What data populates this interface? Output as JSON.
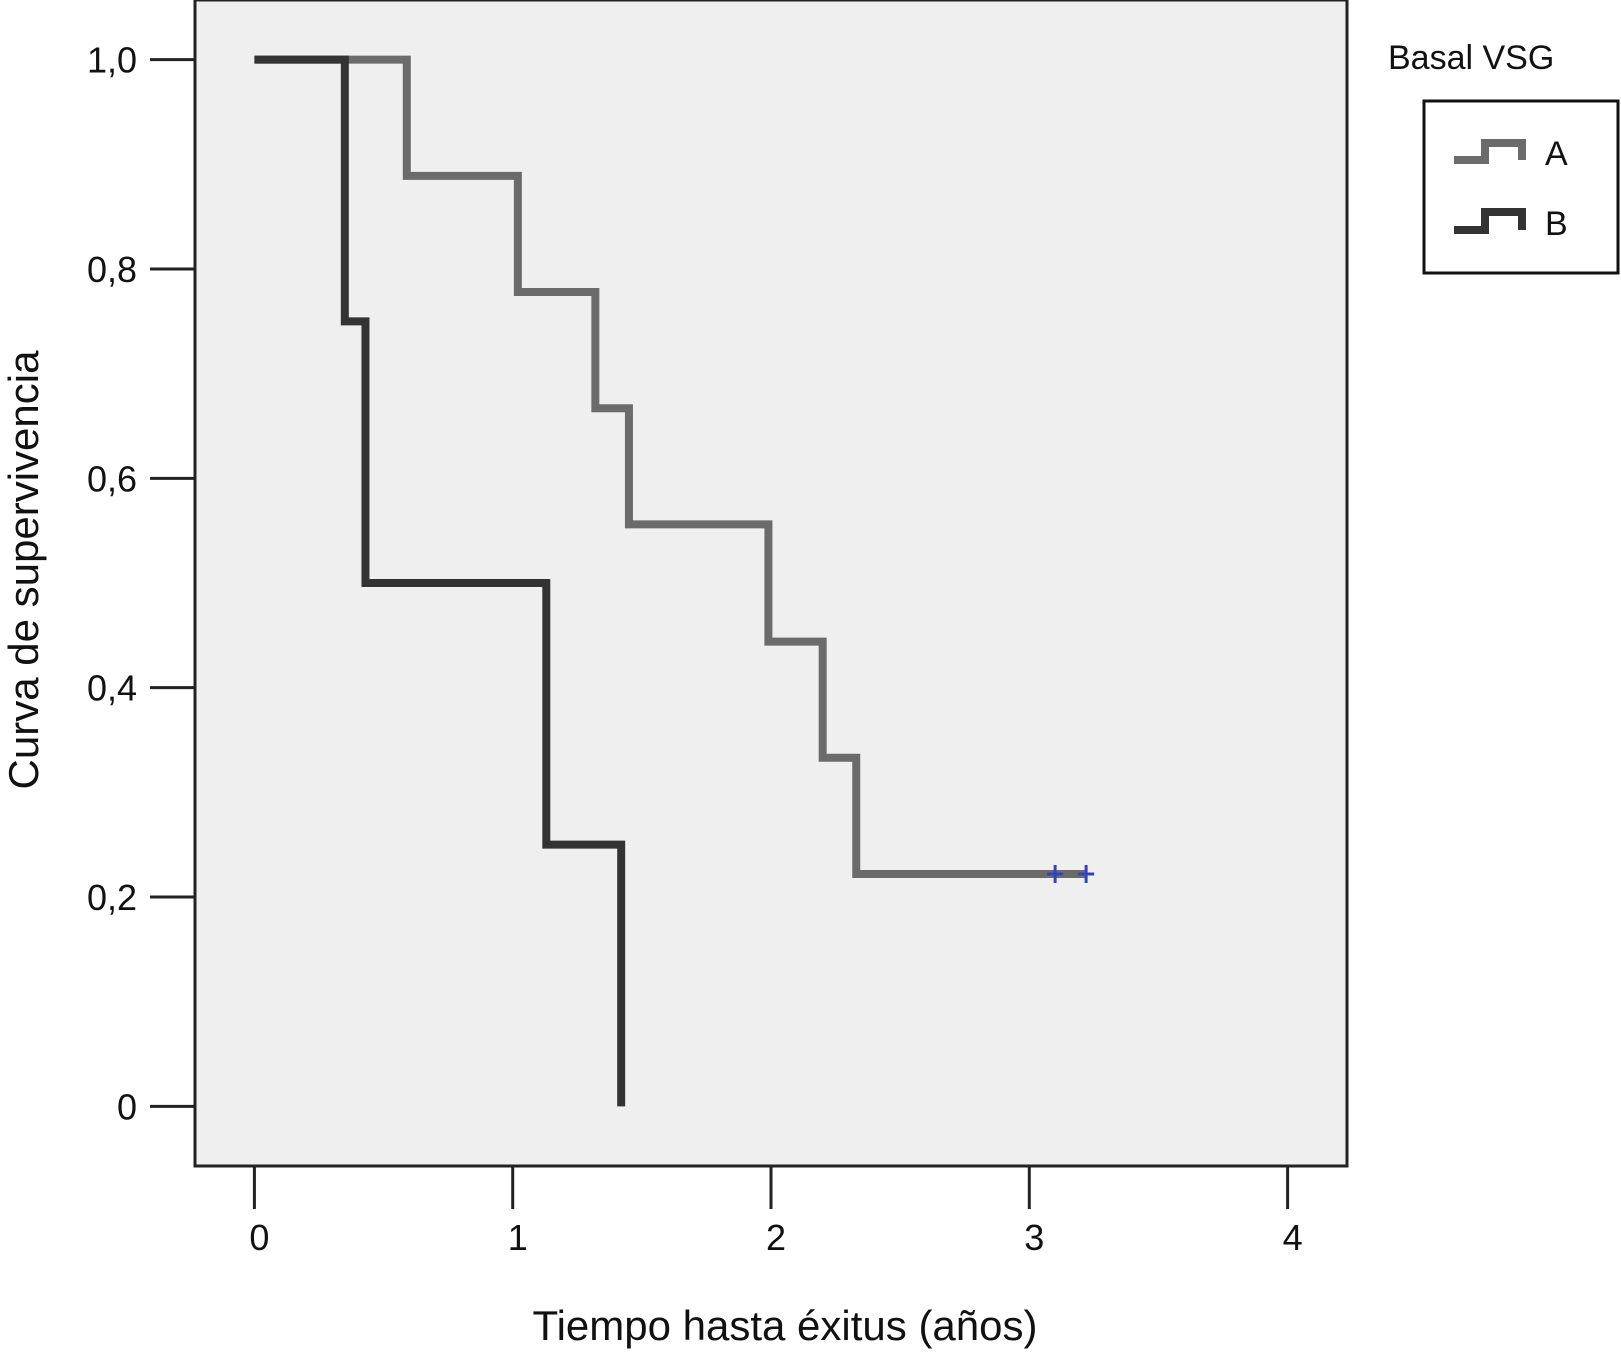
{
  "chart_data": {
    "type": "line",
    "subtype": "kaplan-meier step",
    "xlabel": "Tiempo hasta éxitus (años)",
    "ylabel": "Curva de supervivencia",
    "xlim": [
      -0.23,
      4.23
    ],
    "ylim": [
      -0.057,
      1.057
    ],
    "x_ticks": [
      0,
      1,
      2,
      3,
      4
    ],
    "x_tick_labels": [
      "0",
      "1",
      "2",
      "3",
      "4"
    ],
    "y_ticks": [
      0,
      0.2,
      0.4,
      0.6,
      0.8,
      1.0
    ],
    "y_tick_labels": [
      "0",
      "0,2",
      "0,4",
      "0,6",
      "0,8",
      "1,0"
    ],
    "grid": false,
    "background": "#efefef",
    "legend": {
      "title": "Basal VSG",
      "position": "right-top",
      "entries": [
        "A",
        "B"
      ]
    },
    "series": [
      {
        "name": "A",
        "color": "#6b6b6b",
        "steps": [
          [
            0,
            1.0
          ],
          [
            0.59,
            0.889
          ],
          [
            1.02,
            0.778
          ],
          [
            1.32,
            0.667
          ],
          [
            1.45,
            0.556
          ],
          [
            1.99,
            0.444
          ],
          [
            2.2,
            0.333
          ],
          [
            2.33,
            0.222
          ]
        ],
        "end_x": 3.22,
        "censored": [
          3.1,
          3.22
        ],
        "censor_color": "#3344bb"
      },
      {
        "name": "B",
        "color": "#333333",
        "steps": [
          [
            0,
            1.0
          ],
          [
            0.35,
            0.75
          ],
          [
            0.43,
            0.5
          ],
          [
            1.13,
            0.25
          ],
          [
            1.42,
            0.0
          ]
        ],
        "end_x": 1.42,
        "censored": []
      }
    ]
  }
}
